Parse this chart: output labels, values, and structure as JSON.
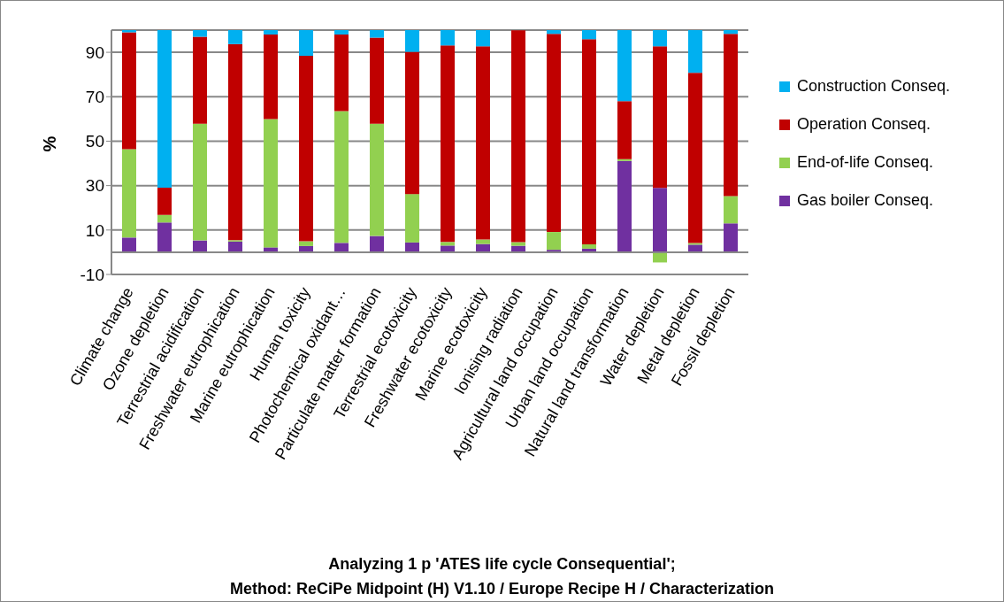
{
  "chart_data": {
    "type": "bar",
    "stacked": true,
    "title": "Analyzing 1 p 'ATES life cycle Consequential';",
    "subtitle": "Method: ReCiPe Midpoint (H) V1.10 / Europe Recipe H / Characterization",
    "ylabel": "%",
    "categories": [
      "Climate change",
      "Ozone depletion",
      "Terrestrial acidification",
      "Freshwater eutrophication",
      "Marine eutrophication",
      "Human toxicity",
      "Photochemical oxidant…",
      "Particulate matter formation",
      "Terrestrial ecotoxicity",
      "Freshwater ecotoxicity",
      "Marine ecotoxicity",
      "Ionising radiation",
      "Agricultural land occupation",
      "Urban land occupation",
      "Natural land transformation",
      "Water depletion",
      "Metal depletion",
      "Fossil depletion"
    ],
    "series": [
      {
        "name": "Gas boiler Conseq.",
        "color": "#7030a0",
        "values": [
          6.6,
          13.4,
          5.3,
          4.8,
          2.2,
          2.8,
          4.2,
          7.3,
          4.4,
          3.0,
          3.7,
          2.9,
          1.1,
          1.6,
          41.1,
          29.0,
          3.4,
          13.0
        ]
      },
      {
        "name": "End-of-life Conseq.",
        "color": "#92d050",
        "values": [
          39.8,
          3.4,
          52.6,
          0.6,
          57.7,
          2.1,
          59.3,
          50.6,
          21.8,
          1.6,
          2.0,
          1.6,
          8.0,
          2.0,
          0.8,
          -4.6,
          0.7,
          12.3
        ]
      },
      {
        "name": "Operation Conseq.",
        "color": "#c00000",
        "values": [
          52.6,
          12.3,
          39.1,
          88.3,
          38.1,
          83.5,
          34.5,
          38.7,
          64.0,
          88.5,
          87.0,
          95.4,
          89.2,
          92.3,
          26.1,
          63.7,
          76.7,
          73.0
        ]
      },
      {
        "name": "Construction Conseq.",
        "color": "#00b0f0",
        "values": [
          1.0,
          70.9,
          3.0,
          6.3,
          2.0,
          11.6,
          2.0,
          3.4,
          9.8,
          6.9,
          7.3,
          null,
          1.7,
          4.1,
          32.0,
          7.3,
          19.2,
          1.7
        ]
      }
    ],
    "ylim": [
      -10,
      100
    ],
    "yticks": [
      -10,
      10,
      30,
      50,
      70,
      90
    ],
    "grid": "y",
    "legend": "right"
  }
}
